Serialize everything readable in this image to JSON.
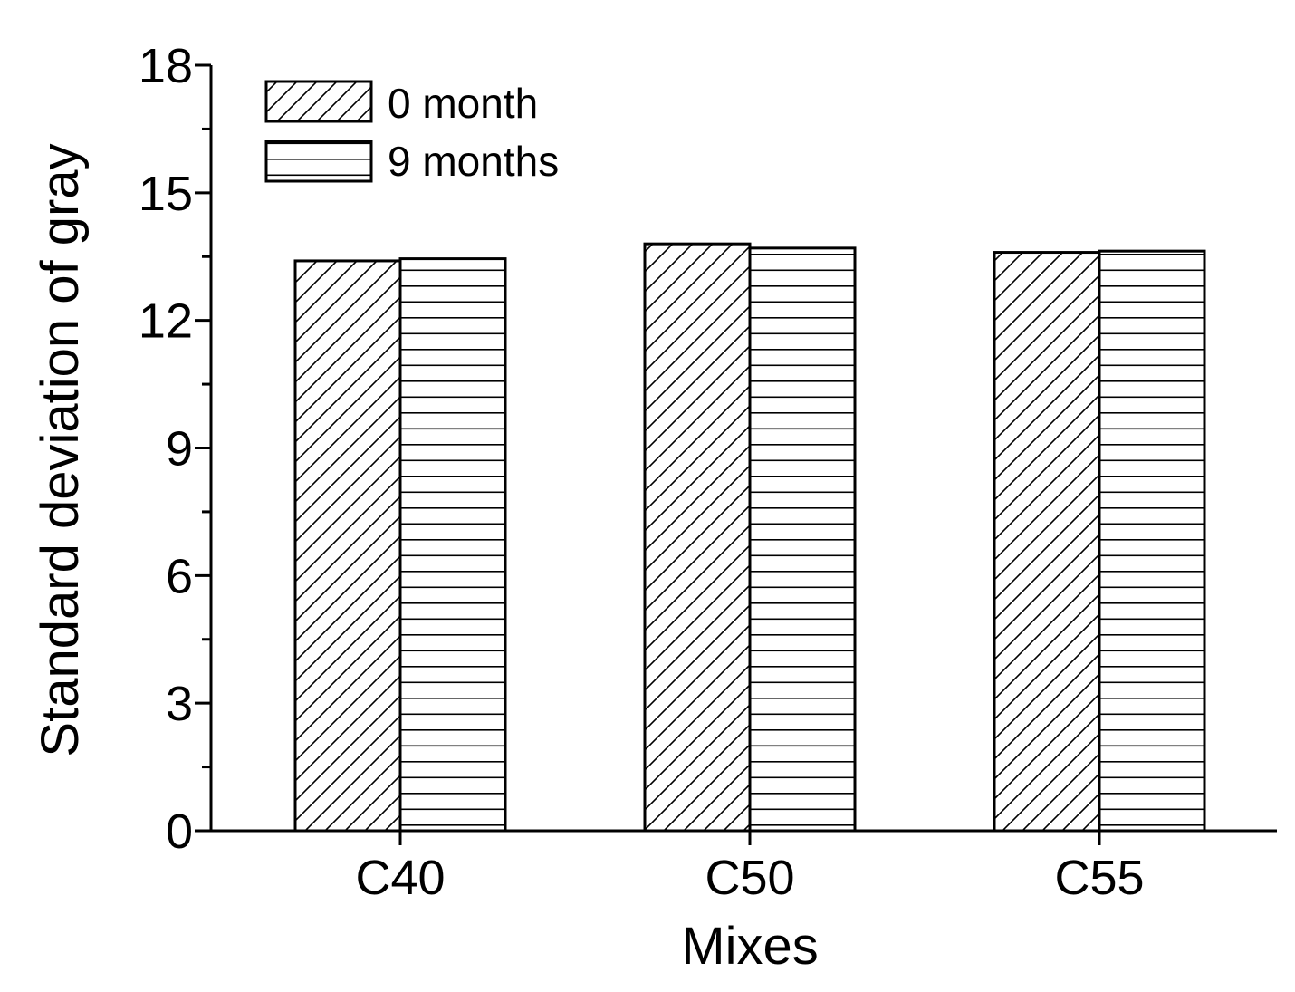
{
  "chart_data": {
    "type": "bar",
    "title": "",
    "xlabel": "Mixes",
    "ylabel": "Standard deviation of gray",
    "categories": [
      "C40",
      "C50",
      "C55"
    ],
    "ylim": [
      0,
      18
    ],
    "yticks": [
      0,
      3,
      6,
      9,
      12,
      15,
      18
    ],
    "grid": false,
    "legend_position": "top-left",
    "series": [
      {
        "name": "0 month",
        "pattern": "diagonal",
        "values": [
          13.4,
          13.8,
          13.6
        ]
      },
      {
        "name": "9 months",
        "pattern": "horizontal",
        "values": [
          13.45,
          13.7,
          13.63
        ]
      }
    ]
  }
}
